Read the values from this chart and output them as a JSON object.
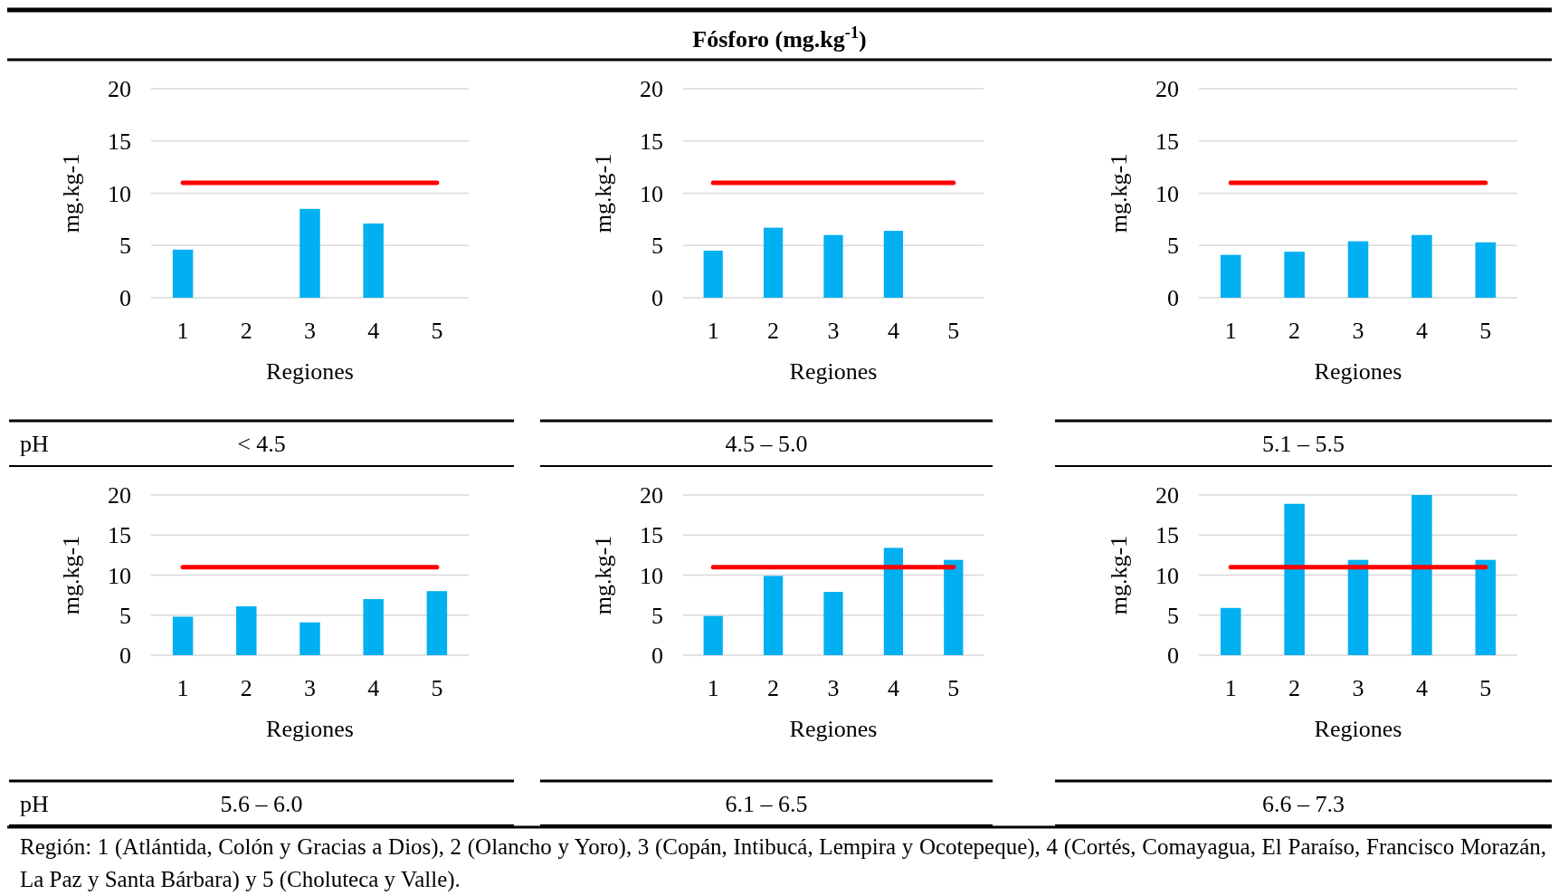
{
  "chart_data": [
    {
      "type": "other",
      "title": "Fósforo (mg.kg$^{-1}$)",
      "annotations": [
        "Región: 1 (Atlántida, Colón y Gracias a Dios), 2 (Olancho y Yoro), 3 (Copán, Intibucá, Lempira y Ocotepeque), 4 (Cortés, Comayagua, El Paraíso, Francisco Morazán, La Paz y Santa Bárbara) y 5 (Choluteca y Valle)."
      ]
    },
    {
      "type": "bar",
      "subtitle": "< 4.5",
      "annotations": [
        "pH"
      ],
      "xlabel": "Regiones",
      "ylabel": "mg.kg-1",
      "categories": [
        "1",
        "2",
        "3",
        "4",
        "5"
      ],
      "values": [
        4.6,
        null,
        8.5,
        7.1,
        null
      ],
      "color": "#00b0f0",
      "ylim": [
        0,
        20
      ],
      "yticks": [
        0,
        5,
        10,
        15,
        20
      ],
      "grid": "y",
      "ref_lines": [
        {
          "axis": "y",
          "value": 11,
          "color": "#ff0000"
        }
      ]
    },
    {
      "type": "bar",
      "subtitle": "4.5 – 5.0",
      "xlabel": "Regiones",
      "ylabel": "mg.kg-1",
      "categories": [
        "1",
        "2",
        "3",
        "4",
        "5"
      ],
      "values": [
        4.5,
        6.7,
        6.0,
        6.4,
        null
      ],
      "color": "#00b0f0",
      "ylim": [
        0,
        20
      ],
      "yticks": [
        0,
        5,
        10,
        15,
        20
      ],
      "grid": "y",
      "ref_lines": [
        {
          "axis": "y",
          "value": 11,
          "color": "#ff0000"
        }
      ]
    },
    {
      "type": "bar",
      "subtitle": "5.1 – 5.5",
      "xlabel": "Regiones",
      "ylabel": "mg.kg-1",
      "categories": [
        "1",
        "2",
        "3",
        "4",
        "5"
      ],
      "values": [
        4.1,
        4.4,
        5.4,
        6.0,
        5.3
      ],
      "color": "#00b0f0",
      "ylim": [
        0,
        20
      ],
      "yticks": [
        0,
        5,
        10,
        15,
        20
      ],
      "grid": "y",
      "ref_lines": [
        {
          "axis": "y",
          "value": 11,
          "color": "#ff0000"
        }
      ]
    },
    {
      "type": "bar",
      "subtitle": "5.6 – 6.0",
      "annotations": [
        "pH"
      ],
      "xlabel": "Regiones",
      "ylabel": "mg.kg-1",
      "categories": [
        "1",
        "2",
        "3",
        "4",
        "5"
      ],
      "values": [
        4.8,
        6.1,
        4.1,
        7.0,
        8.0
      ],
      "color": "#00b0f0",
      "ylim": [
        0,
        20
      ],
      "yticks": [
        0,
        5,
        10,
        15,
        20
      ],
      "grid": "y",
      "ref_lines": [
        {
          "axis": "y",
          "value": 11,
          "color": "#ff0000"
        }
      ]
    },
    {
      "type": "bar",
      "subtitle": "6.1 – 6.5",
      "xlabel": "Regiones",
      "ylabel": "mg.kg-1",
      "categories": [
        "1",
        "2",
        "3",
        "4",
        "5"
      ],
      "values": [
        4.9,
        9.9,
        7.9,
        13.4,
        11.9
      ],
      "color": "#00b0f0",
      "ylim": [
        0,
        20
      ],
      "yticks": [
        0,
        5,
        10,
        15,
        20
      ],
      "grid": "y",
      "ref_lines": [
        {
          "axis": "y",
          "value": 11,
          "color": "#ff0000"
        }
      ]
    },
    {
      "type": "bar",
      "subtitle": "6.6 – 7.3",
      "xlabel": "Regiones",
      "ylabel": "mg.kg-1",
      "categories": [
        "1",
        "2",
        "3",
        "4",
        "5"
      ],
      "values": [
        5.9,
        18.9,
        11.9,
        20,
        11.9
      ],
      "color": "#00b0f0",
      "ylim": [
        0,
        20
      ],
      "yticks": [
        0,
        5,
        10,
        15,
        20
      ],
      "grid": "y",
      "ref_lines": [
        {
          "axis": "y",
          "value": 11,
          "color": "#ff0000"
        }
      ]
    }
  ]
}
